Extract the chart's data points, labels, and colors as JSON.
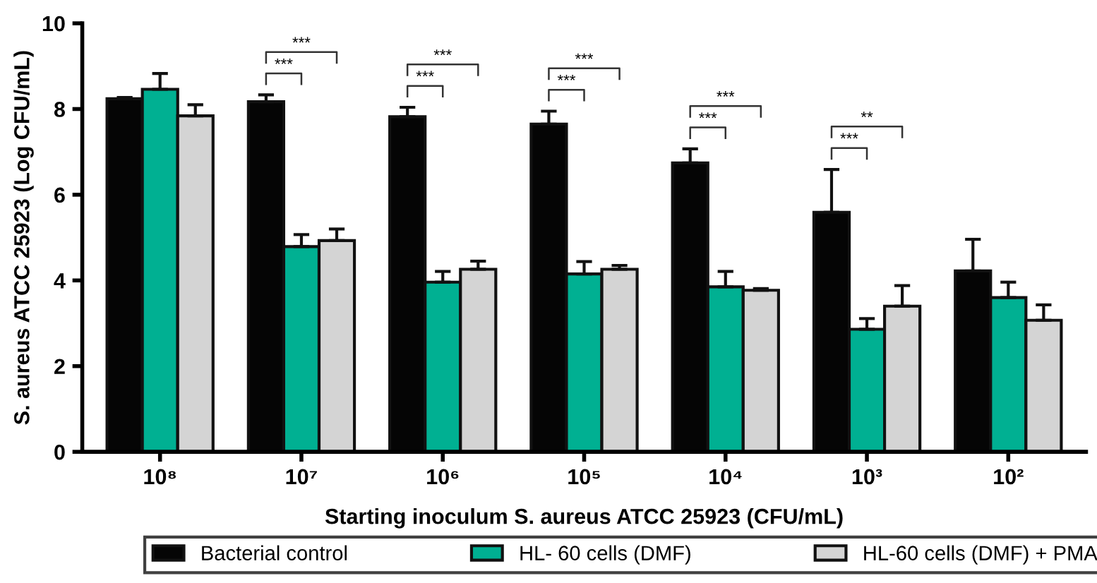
{
  "chart_data": {
    "type": "bar",
    "xlabel": "Starting inoculum S. aureus ATCC 25923 (CFU/mL)",
    "ylabel": "S. aureus ATCC 25923 (Log CFU/mL)",
    "categories": [
      "10⁸",
      "10⁷",
      "10⁶",
      "10⁵",
      "10⁴",
      "10³",
      "10²"
    ],
    "series": [
      {
        "name": "Bacterial control",
        "color": "#050505",
        "values": [
          8.24,
          8.17,
          7.82,
          7.65,
          6.74,
          5.59,
          4.22
        ],
        "errors": [
          [
            8.24,
            8.27
          ],
          [
            8.17,
            8.33
          ],
          [
            7.82,
            8.04
          ],
          [
            7.65,
            7.95
          ],
          [
            6.74,
            7.07
          ],
          [
            5.59,
            6.59
          ],
          [
            4.22,
            4.96
          ]
        ]
      },
      {
        "name": "HL- 60 cells (DMF)",
        "color": "#00b092",
        "values": [
          8.46,
          4.79,
          3.96,
          4.15,
          3.85,
          2.86,
          3.6
        ],
        "errors": [
          [
            8.46,
            8.83
          ],
          [
            4.79,
            5.07
          ],
          [
            3.96,
            4.21
          ],
          [
            4.15,
            4.44
          ],
          [
            3.85,
            4.21
          ],
          [
            2.86,
            3.11
          ],
          [
            3.6,
            3.96
          ]
        ]
      },
      {
        "name": "HL-60 cells (DMF) + PMA",
        "color": "#d4d4d4",
        "values": [
          7.84,
          4.93,
          4.26,
          4.26,
          3.77,
          3.4,
          3.07
        ],
        "errors": [
          [
            7.84,
            8.1
          ],
          [
            4.93,
            5.2
          ],
          [
            4.26,
            4.45
          ],
          [
            4.26,
            4.35
          ],
          [
            3.77,
            3.81
          ],
          [
            3.4,
            3.88
          ],
          [
            3.07,
            3.43
          ]
        ]
      }
    ],
    "ylim": [
      0,
      10
    ],
    "yticks": [
      0,
      2,
      4,
      6,
      8,
      10
    ],
    "grid": false,
    "legend": "bottom",
    "annotations": [
      "***",
      "***",
      "***",
      "***",
      "***",
      "***",
      "***",
      "***",
      "***",
      "**"
    ]
  }
}
